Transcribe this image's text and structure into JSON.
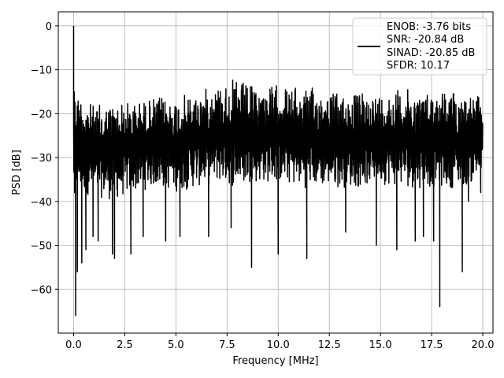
{
  "chart_data": {
    "type": "line",
    "title": "",
    "xlabel": "Frequency [MHz]",
    "ylabel": "PSD [dB]",
    "xlim": [
      -0.75,
      20.5
    ],
    "ylim": [
      -70.0,
      3.2
    ],
    "xticks": [
      0.0,
      2.5,
      5.0,
      7.5,
      10.0,
      12.5,
      15.0,
      17.5,
      20.0
    ],
    "xtick_labels": [
      "0.0",
      "2.5",
      "5.0",
      "7.5",
      "10.0",
      "12.5",
      "15.0",
      "17.5",
      "20.0"
    ],
    "yticks": [
      0,
      -10,
      -20,
      -30,
      -40,
      -50,
      -60
    ],
    "ytick_labels": [
      "0",
      "−10",
      "−20",
      "−30",
      "−40",
      "−50",
      "−60"
    ],
    "grid": true,
    "legend_position": "upper-right",
    "series": [
      {
        "legend_lines": [
          "ENOB: -3.76 bits",
          "SNR: -20.84 dB",
          "SINAD: -20.85 dB",
          "SFDR: 10.17"
        ],
        "color": "#000000",
        "envelope": {
          "x": [
            0.0,
            1.0,
            2.0,
            3.0,
            4.0,
            5.0,
            6.0,
            7.0,
            8.0,
            9.0,
            10.0,
            11.0,
            12.0,
            13.0,
            14.0,
            15.0,
            16.0,
            17.0,
            18.0,
            19.0,
            20.0
          ],
          "upper": [
            -14,
            -18,
            -17,
            -17,
            -16,
            -16,
            -15,
            -13,
            -12,
            -14,
            -13,
            -14,
            -14,
            -15,
            -15,
            -15,
            -14,
            -15,
            -14,
            -15,
            -16
          ],
          "lower": [
            -38,
            -39,
            -40,
            -38,
            -37,
            -38,
            -37,
            -36,
            -37,
            -36,
            -36,
            -37,
            -37,
            -37,
            -37,
            -36,
            -37,
            -37,
            -37,
            -37,
            -35
          ]
        },
        "points": [
          [
            0.0,
            0
          ],
          [
            0.03,
            -15
          ],
          [
            0.05,
            -38
          ],
          [
            0.08,
            -25
          ],
          [
            0.1,
            -66
          ],
          [
            0.12,
            -30
          ],
          [
            0.18,
            -56
          ],
          [
            0.35,
            -18
          ],
          [
            0.4,
            -54
          ],
          [
            0.6,
            -51
          ],
          [
            0.95,
            -48
          ],
          [
            1.2,
            -49
          ],
          [
            1.9,
            -52
          ],
          [
            2.0,
            -53
          ],
          [
            2.8,
            -52
          ],
          [
            3.4,
            -48
          ],
          [
            4.5,
            -49
          ],
          [
            5.2,
            -48
          ],
          [
            6.6,
            -48
          ],
          [
            7.7,
            -46
          ],
          [
            8.7,
            -55
          ],
          [
            10.0,
            -52
          ],
          [
            11.4,
            -53
          ],
          [
            13.3,
            -47
          ],
          [
            14.8,
            -50
          ],
          [
            15.8,
            -51
          ],
          [
            16.7,
            -49
          ],
          [
            17.1,
            -48
          ],
          [
            17.6,
            -49
          ],
          [
            17.9,
            -64
          ],
          [
            19.0,
            -56
          ],
          [
            19.3,
            -40
          ],
          [
            19.9,
            -38
          ]
        ]
      }
    ]
  }
}
